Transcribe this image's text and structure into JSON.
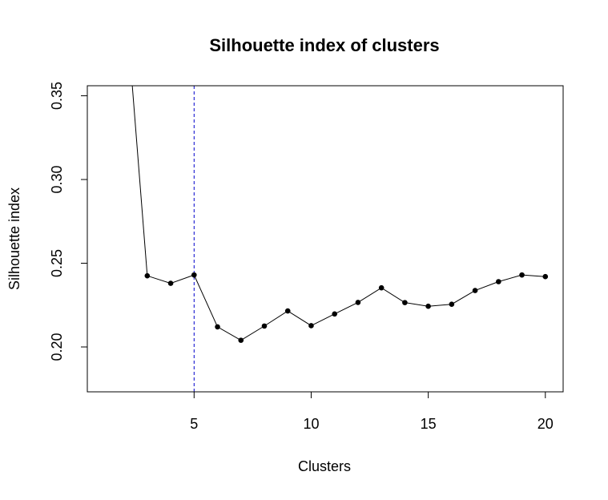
{
  "chart_data": {
    "type": "line",
    "title": "Silhouette index of clusters",
    "xlabel": "Clusters",
    "ylabel": "Silhouette index",
    "xlim": [
      0.44,
      20.76
    ],
    "ylim": [
      0.1732,
      0.356
    ],
    "xticks": [
      5,
      10,
      15,
      20
    ],
    "xtick_labels": [
      "5",
      "10",
      "15",
      "20"
    ],
    "yticks": [
      0.2,
      0.25,
      0.3,
      0.35
    ],
    "ytick_labels": [
      "0.20",
      "0.25",
      "0.30",
      "0.35"
    ],
    "x": [
      2,
      3,
      4,
      5,
      6,
      7,
      8,
      9,
      10,
      11,
      12,
      13,
      14,
      15,
      16,
      17,
      18,
      19,
      20
    ],
    "series": [
      {
        "values": [
          0.42,
          0.2425,
          0.238,
          0.243,
          0.212,
          0.204,
          0.2125,
          0.2215,
          0.2127,
          0.2197,
          0.2266,
          0.2353,
          0.2265,
          0.2243,
          0.2255,
          0.2337,
          0.239,
          0.243,
          0.242
        ],
        "color": "#000000",
        "point_marker": "filled-circle"
      }
    ],
    "reference_line": {
      "orientation": "vertical",
      "x": 5,
      "style": "dashed",
      "color": "#0000cc"
    },
    "grid": false,
    "legend": "none"
  }
}
